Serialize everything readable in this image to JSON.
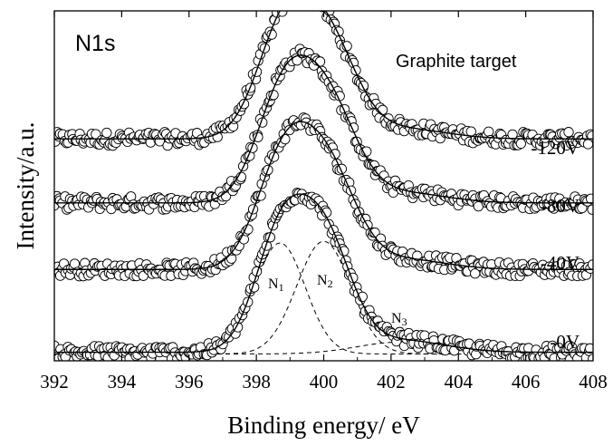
{
  "chart_data": {
    "type": "line",
    "title": "",
    "panel_label": "N1s",
    "annotation": "Graphite target",
    "xlabel": "Binding energy/ eV",
    "ylabel": "Intensity/a.u.",
    "xlim": [
      392,
      408
    ],
    "x_ticks": [
      392,
      394,
      396,
      398,
      400,
      402,
      404,
      406,
      408
    ],
    "y_ticks_shown": false,
    "grid": false,
    "legend": "none",
    "series": [
      {
        "label": "-120V",
        "baseline": 2.55,
        "peaks": [
          {
            "center": 398.8,
            "height": 1.22,
            "width": 0.8
          },
          {
            "center": 400.1,
            "height": 1.12,
            "width": 0.85
          },
          {
            "center": 402.3,
            "height": 0.12,
            "width": 1.3
          }
        ]
      },
      {
        "label": "-80V",
        "baseline": 1.8,
        "peaks": [
          {
            "center": 398.8,
            "height": 1.22,
            "width": 0.8
          },
          {
            "center": 400.1,
            "height": 1.12,
            "width": 0.85
          },
          {
            "center": 402.3,
            "height": 0.12,
            "width": 1.3
          }
        ]
      },
      {
        "label": "-40V",
        "baseline": 1.02,
        "peaks": [
          {
            "center": 398.8,
            "height": 1.22,
            "width": 0.8
          },
          {
            "center": 400.1,
            "height": 1.12,
            "width": 0.85
          },
          {
            "center": 402.3,
            "height": 0.12,
            "width": 1.3
          }
        ]
      },
      {
        "label": "-0V",
        "baseline": 0.05,
        "peaks": [
          {
            "center": 398.7,
            "height": 1.3,
            "width": 0.75
          },
          {
            "center": 400.0,
            "height": 1.32,
            "width": 0.8
          },
          {
            "center": 402.3,
            "height": 0.14,
            "width": 1.3
          }
        ]
      }
    ],
    "components": [
      {
        "label": "N",
        "subscript": "1",
        "center": 398.7,
        "height": 1.3,
        "width": 0.75
      },
      {
        "label": "N",
        "subscript": "2",
        "center": 400.0,
        "height": 1.32,
        "width": 0.8
      },
      {
        "label": "N",
        "subscript": "3",
        "center": 402.3,
        "height": 0.14,
        "width": 1.3
      }
    ],
    "colors": {
      "line": "#000000",
      "marker": "#000000",
      "background": "#ffffff"
    }
  }
}
